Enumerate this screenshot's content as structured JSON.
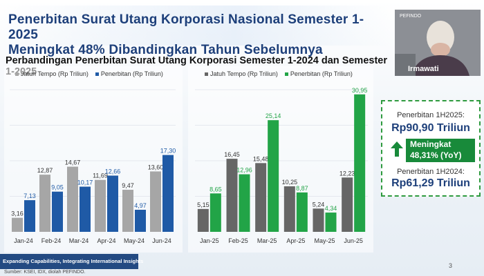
{
  "header": {
    "title_line1": "Penerbitan Surat Utang Korporasi Nasional Semester 1-2025",
    "title_line2": "Meningkat 48% Dibandingkan Tahun Sebelumnya",
    "subtitle": "Perbandingan Penerbitan Surat Utang Korporasi Semester 1-2024 dan Semester 1-2025"
  },
  "chart_data": [
    {
      "type": "bar",
      "categories": [
        "Jan-24",
        "Feb-24",
        "Mar-24",
        "Apr-24",
        "May-24",
        "Jun-24"
      ],
      "series": [
        {
          "name": "Jatuh Tempo (Rp Triliun)",
          "values": [
            3.16,
            12.87,
            14.67,
            11.69,
            9.47,
            13.6
          ],
          "labels": [
            "3,16",
            "12,87",
            "14,67",
            "11,69",
            "9,47",
            "13,60"
          ],
          "color": "#a6a6a6"
        },
        {
          "name": "Penerbitan (Rp Triliun)",
          "values": [
            7.13,
            9.05,
            10.17,
            12.66,
            4.97,
            17.3
          ],
          "labels": [
            "7,13",
            "9,05",
            "10,17",
            "12,66",
            "4,97",
            "17,30"
          ],
          "color": "#1f5aa6"
        }
      ],
      "ylim": [
        0,
        32
      ],
      "legend": "top-left"
    },
    {
      "type": "bar",
      "categories": [
        "Jan-25",
        "Feb-25",
        "Mar-25",
        "Apr-25",
        "May-25",
        "Jun-25"
      ],
      "series": [
        {
          "name": "Jatuh Tempo (Rp Triliun)",
          "values": [
            5.15,
            16.45,
            15.48,
            10.25,
            5.24,
            12.23
          ],
          "labels": [
            "5,15",
            "16,45",
            "15,48",
            "10,25",
            "5,24",
            "12,23"
          ],
          "color": "#666666"
        },
        {
          "name": "Penerbitan (Rp Triliun)",
          "values": [
            8.65,
            12.96,
            25.14,
            8.87,
            4.34,
            30.95
          ],
          "labels": [
            "8,65",
            "12,96",
            "25,14",
            "8,87",
            "4,34",
            "30,95"
          ],
          "color": "#22a447"
        }
      ],
      "ylim": [
        0,
        32
      ],
      "legend": "top-left"
    }
  ],
  "summary": {
    "label_2025": "Penerbitan 1H2025:",
    "value_2025": "Rp90,90 Triliun",
    "increase_line1": "Meningkat",
    "increase_line2": "48,31% (YoY)",
    "label_2024": "Penerbitan 1H2024:",
    "value_2024": "Rp61,29 Triliun",
    "arrow_icon": "arrow-up-icon",
    "accent_color": "#188a3a"
  },
  "video": {
    "logo": "PEFINDO",
    "speaker_name": "Irmawati"
  },
  "footer": {
    "banner": "Expanding Capabilities, Integrating International Insights",
    "source": "Sumber: KSEI, IDX, diolah PEFINDO.",
    "page_number": "3"
  }
}
